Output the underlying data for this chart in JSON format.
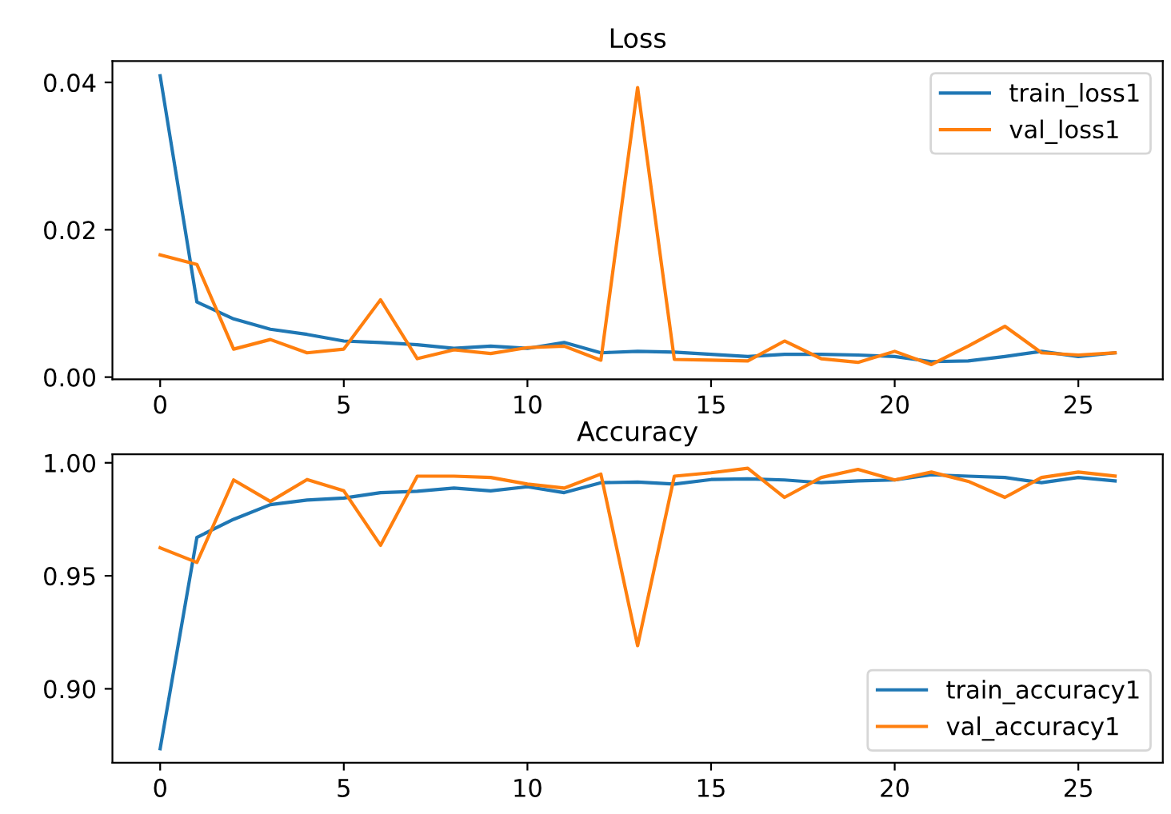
{
  "chart_data": [
    {
      "type": "line",
      "title": "Loss",
      "x": [
        0,
        1,
        2,
        3,
        4,
        5,
        6,
        7,
        8,
        9,
        10,
        11,
        12,
        13,
        14,
        15,
        16,
        17,
        18,
        19,
        20,
        21,
        22,
        23,
        24,
        25,
        26
      ],
      "series": [
        {
          "name": "train_loss1",
          "color": "#1f77b4",
          "values": [
            0.0409,
            0.0102,
            0.0079,
            0.0065,
            0.0058,
            0.0049,
            0.0047,
            0.0044,
            0.0039,
            0.0042,
            0.0039,
            0.0047,
            0.0033,
            0.0035,
            0.0034,
            0.0031,
            0.0028,
            0.0031,
            0.0031,
            0.003,
            0.0028,
            0.0021,
            0.0022,
            0.0028,
            0.0035,
            0.0028,
            0.0033
          ]
        },
        {
          "name": "val_loss1",
          "color": "#ff7f0e",
          "values": [
            0.0166,
            0.0153,
            0.0038,
            0.0051,
            0.0033,
            0.0038,
            0.0105,
            0.0025,
            0.0037,
            0.0032,
            0.004,
            0.0042,
            0.0023,
            0.0393,
            0.0024,
            0.0023,
            0.0022,
            0.0049,
            0.0025,
            0.002,
            0.0035,
            0.0017,
            0.0042,
            0.0069,
            0.0033,
            0.003,
            0.0033
          ]
        }
      ],
      "xlim": [
        -1.3,
        27.3
      ],
      "xticks": [
        0,
        5,
        10,
        15,
        20,
        25
      ],
      "ylim": [
        -0.0003,
        0.0429
      ],
      "yticks": [
        {
          "value": 0.0,
          "label": "0.00"
        },
        {
          "value": 0.02,
          "label": "0.02"
        },
        {
          "value": 0.04,
          "label": "0.04"
        }
      ],
      "legend": "top right",
      "grid": false,
      "line_style": "solid"
    },
    {
      "type": "line",
      "title": "Accuracy",
      "x": [
        0,
        1,
        2,
        3,
        4,
        5,
        6,
        7,
        8,
        9,
        10,
        11,
        12,
        13,
        14,
        15,
        16,
        17,
        18,
        19,
        20,
        21,
        22,
        23,
        24,
        25,
        26
      ],
      "series": [
        {
          "name": "train_accuracy1",
          "color": "#1f77b4",
          "values": [
            0.8735,
            0.967,
            0.975,
            0.9815,
            0.9835,
            0.9844,
            0.9868,
            0.9874,
            0.9888,
            0.9876,
            0.9894,
            0.9868,
            0.9912,
            0.9915,
            0.9906,
            0.9926,
            0.9929,
            0.9924,
            0.9912,
            0.992,
            0.9924,
            0.9947,
            0.9941,
            0.9935,
            0.9912,
            0.9935,
            0.992
          ]
        },
        {
          "name": "val_accuracy1",
          "color": "#ff7f0e",
          "values": [
            0.9624,
            0.9559,
            0.9924,
            0.9829,
            0.9926,
            0.9876,
            0.9635,
            0.9941,
            0.9941,
            0.9935,
            0.9906,
            0.9888,
            0.995,
            0.9191,
            0.9941,
            0.9956,
            0.9976,
            0.9847,
            0.9935,
            0.9971,
            0.9924,
            0.9959,
            0.9918,
            0.9847,
            0.9935,
            0.9959,
            0.9941
          ]
        }
      ],
      "xlim": [
        -1.3,
        27.3
      ],
      "xticks": [
        0,
        5,
        10,
        15,
        20,
        25
      ],
      "ylim": [
        0.8673,
        1.0038
      ],
      "yticks": [
        {
          "value": 0.9,
          "label": "0.90"
        },
        {
          "value": 0.95,
          "label": "0.95"
        },
        {
          "value": 1.0,
          "label": "1.00"
        }
      ],
      "legend": "bottom right",
      "grid": false,
      "line_style": "solid"
    }
  ]
}
